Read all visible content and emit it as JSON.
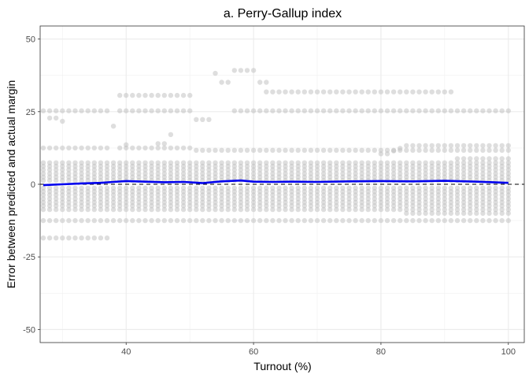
{
  "chart_data": {
    "type": "scatter",
    "title": "a. Perry-Gallup index",
    "xlabel": "Turnout (%)",
    "ylabel": "Error between predicted and actual margin",
    "xlim": [
      26.5,
      102.5
    ],
    "ylim": [
      -54.5,
      54.5
    ],
    "x_ticks": [
      40,
      60,
      80,
      100
    ],
    "y_ticks": [
      50,
      25,
      0,
      -25,
      -50
    ],
    "x_tick_labels": [
      "40",
      "60",
      "80",
      "100"
    ],
    "y_tick_labels": [
      "50",
      "25",
      "0",
      "-25",
      "-50"
    ],
    "grid": true,
    "point_color": "#bebebe",
    "trend_color": "#0000ee",
    "reference_line_y": 0,
    "point_x_step": 1,
    "point_bands": [
      {
        "x_from": 27,
        "x_to": 100,
        "y": [
          -8.7,
          -7.4,
          -6.2,
          -5.0,
          -3.7,
          -2.5,
          -1.3,
          1.3,
          2.5,
          3.7,
          5.0,
          6.2,
          7.4
        ]
      },
      {
        "x_from": 27,
        "x_to": 100,
        "y": [
          -12.5
        ]
      },
      {
        "x_from": 27,
        "x_to": 37,
        "y": [
          -18.5
        ]
      },
      {
        "x_from": 27,
        "x_to": 37,
        "y": [
          12.5,
          25.3
        ]
      },
      {
        "x_from": 39,
        "x_to": 50,
        "y": [
          12.5,
          25.3,
          30.6
        ]
      },
      {
        "x_from": 51,
        "x_to": 100,
        "y": [
          11.7
        ]
      },
      {
        "x_from": 62,
        "x_to": 91,
        "y": [
          31.8
        ]
      },
      {
        "x_from": 57,
        "x_to": 100,
        "y": [
          25.3
        ]
      },
      {
        "x_from": 84,
        "x_to": 100,
        "y": [
          13.3,
          -10.0
        ]
      },
      {
        "x_from": 92,
        "x_to": 100,
        "y": [
          8.8
        ]
      }
    ],
    "extra_points": [
      {
        "x": 28,
        "y": 22.8
      },
      {
        "x": 29,
        "y": 22.8
      },
      {
        "x": 30,
        "y": 21.7
      },
      {
        "x": 38,
        "y": 20.0
      },
      {
        "x": 40,
        "y": 13.6
      },
      {
        "x": 45,
        "y": 14.0
      },
      {
        "x": 46,
        "y": 14.0
      },
      {
        "x": 47,
        "y": 17.1
      },
      {
        "x": 51,
        "y": 22.3
      },
      {
        "x": 52,
        "y": 22.3
      },
      {
        "x": 53,
        "y": 22.3
      },
      {
        "x": 54,
        "y": 38.2
      },
      {
        "x": 55,
        "y": 35.1
      },
      {
        "x": 56,
        "y": 35.1
      },
      {
        "x": 57,
        "y": 39.2
      },
      {
        "x": 58,
        "y": 39.2
      },
      {
        "x": 59,
        "y": 39.2
      },
      {
        "x": 60,
        "y": 39.2
      },
      {
        "x": 61,
        "y": 35.1
      },
      {
        "x": 62,
        "y": 35.1
      },
      {
        "x": 80,
        "y": 10.5
      },
      {
        "x": 81,
        "y": 10.5
      },
      {
        "x": 82,
        "y": 11.5
      },
      {
        "x": 83,
        "y": 12.4
      }
    ],
    "trend_line": {
      "x": [
        27,
        30,
        33,
        36,
        38,
        40,
        43,
        46,
        49,
        52,
        55,
        58,
        60,
        63,
        66,
        70,
        75,
        80,
        85,
        90,
        95,
        100
      ],
      "y": [
        -0.3,
        0.0,
        0.3,
        0.5,
        0.8,
        1.1,
        0.9,
        0.7,
        0.8,
        0.4,
        1.0,
        1.3,
        0.9,
        0.8,
        0.9,
        0.8,
        1.0,
        1.1,
        1.0,
        1.2,
        0.9,
        0.5
      ]
    }
  }
}
